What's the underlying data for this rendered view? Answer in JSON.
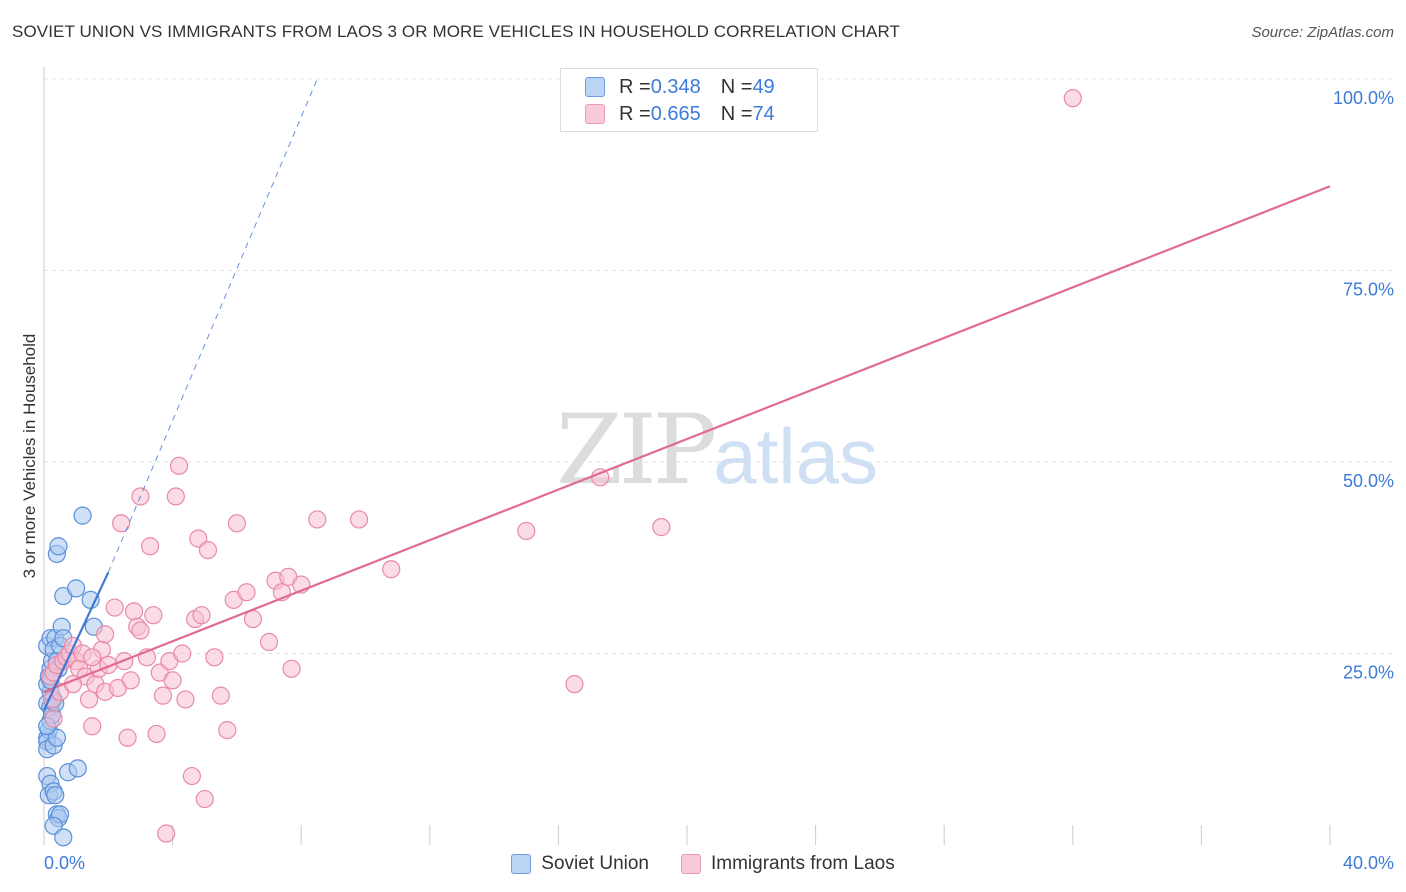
{
  "header": {
    "title": "SOVIET UNION VS IMMIGRANTS FROM LAOS 3 OR MORE VEHICLES IN HOUSEHOLD CORRELATION CHART",
    "source": "Source: ZipAtlas.com"
  },
  "watermark": {
    "zip": "ZIP",
    "atlas": "atlas"
  },
  "legend_top": {
    "rows": [
      {
        "r_label": "R = ",
        "r_value": "0.348",
        "n_label": "N = ",
        "n_value": "49"
      },
      {
        "r_label": "R = ",
        "r_value": "0.665",
        "n_label": "N = ",
        "n_value": "74"
      }
    ]
  },
  "legend_bottom": {
    "items": [
      "Soviet Union",
      "Immigrants from Laos"
    ]
  },
  "colors": {
    "soviet_fill": "#a9c8f0",
    "soviet_stroke": "#5b8fd9",
    "soviet_line": "#3f78d4",
    "laos_fill": "#f7bfd0",
    "laos_stroke": "#e88aa8",
    "laos_line": "#e06a94",
    "axis_text": "#3d7bd9",
    "grid": "#e2e2e2"
  },
  "chart_data": {
    "type": "scatter",
    "title": "SOVIET UNION VS IMMIGRANTS FROM LAOS 3 OR MORE VEHICLES IN HOUSEHOLD CORRELATION CHART",
    "xlabel": "",
    "ylabel": "3 or more Vehicles in Household",
    "xlim": [
      0,
      40
    ],
    "ylim": [
      0,
      100
    ],
    "x_tick_labels": [
      "0.0%",
      "40.0%"
    ],
    "y_ticks": [
      25,
      50,
      75,
      100
    ],
    "y_tick_labels": [
      "25.0%",
      "50.0%",
      "75.0%",
      "100.0%"
    ],
    "grid": true,
    "legend_position": "top-center",
    "series": [
      {
        "name": "Soviet Union",
        "r": 0.348,
        "n": 49,
        "trend": {
          "x": [
            0,
            2.0
          ],
          "y": [
            17.6,
            35.6
          ]
        },
        "trend_extension": {
          "x": [
            2.0,
            8.5
          ],
          "y": [
            35.6,
            100
          ]
        },
        "points": [
          [
            0.1,
            14.0
          ],
          [
            0.15,
            15.0
          ],
          [
            0.1,
            13.5
          ],
          [
            0.2,
            16.2
          ],
          [
            0.25,
            17.0
          ],
          [
            0.1,
            18.5
          ],
          [
            0.3,
            19.0
          ],
          [
            0.2,
            20.0
          ],
          [
            0.1,
            21.0
          ],
          [
            0.15,
            22.0
          ],
          [
            0.2,
            23.0
          ],
          [
            0.25,
            24.0
          ],
          [
            0.3,
            22.5
          ],
          [
            0.1,
            26.0
          ],
          [
            0.2,
            27.0
          ],
          [
            0.35,
            27.0
          ],
          [
            0.3,
            25.5
          ],
          [
            0.4,
            24.0
          ],
          [
            0.5,
            26.0
          ],
          [
            0.55,
            28.5
          ],
          [
            0.6,
            27.0
          ],
          [
            0.45,
            23.0
          ],
          [
            0.1,
            12.5
          ],
          [
            0.3,
            13.0
          ],
          [
            0.4,
            14.0
          ],
          [
            0.1,
            9.0
          ],
          [
            0.2,
            8.0
          ],
          [
            0.15,
            6.5
          ],
          [
            0.3,
            7.0
          ],
          [
            0.35,
            6.5
          ],
          [
            0.4,
            4.0
          ],
          [
            0.45,
            3.5
          ],
          [
            0.5,
            4.0
          ],
          [
            0.3,
            2.5
          ],
          [
            0.6,
            1.0
          ],
          [
            0.75,
            9.5
          ],
          [
            1.05,
            10.0
          ],
          [
            0.4,
            38.0
          ],
          [
            0.45,
            39.0
          ],
          [
            0.6,
            32.5
          ],
          [
            1.0,
            33.5
          ],
          [
            1.2,
            43.0
          ],
          [
            1.45,
            32.0
          ],
          [
            1.55,
            28.5
          ],
          [
            0.2,
            18.0
          ],
          [
            0.25,
            17.0
          ],
          [
            0.35,
            18.5
          ],
          [
            0.1,
            15.5
          ],
          [
            0.2,
            21.5
          ]
        ]
      },
      {
        "name": "Immigrants from Laos",
        "r": 0.665,
        "n": 74,
        "trend": {
          "x": [
            0,
            40
          ],
          "y": [
            20.0,
            86.0
          ]
        },
        "points": [
          [
            0.2,
            22.0
          ],
          [
            0.25,
            19.0
          ],
          [
            0.3,
            22.5
          ],
          [
            0.4,
            23.5
          ],
          [
            0.5,
            20.0
          ],
          [
            0.6,
            24.0
          ],
          [
            0.7,
            24.5
          ],
          [
            0.8,
            25.0
          ],
          [
            0.9,
            26.0
          ],
          [
            1.0,
            24.0
          ],
          [
            1.1,
            23.0
          ],
          [
            1.2,
            25.0
          ],
          [
            1.3,
            22.0
          ],
          [
            1.4,
            19.0
          ],
          [
            1.5,
            15.5
          ],
          [
            1.6,
            21.0
          ],
          [
            1.7,
            23.0
          ],
          [
            1.8,
            25.5
          ],
          [
            1.9,
            20.0
          ],
          [
            2.0,
            23.5
          ],
          [
            2.2,
            31.0
          ],
          [
            2.3,
            20.5
          ],
          [
            2.5,
            24.0
          ],
          [
            2.6,
            14.0
          ],
          [
            2.8,
            30.5
          ],
          [
            2.9,
            28.5
          ],
          [
            3.0,
            28.0
          ],
          [
            3.2,
            24.5
          ],
          [
            3.4,
            30.0
          ],
          [
            3.5,
            14.5
          ],
          [
            3.6,
            22.5
          ],
          [
            3.7,
            19.5
          ],
          [
            3.8,
            1.5
          ],
          [
            3.9,
            24.0
          ],
          [
            4.0,
            21.5
          ],
          [
            4.2,
            49.5
          ],
          [
            4.3,
            25.0
          ],
          [
            4.4,
            19.0
          ],
          [
            4.6,
            9.0
          ],
          [
            4.7,
            29.5
          ],
          [
            4.8,
            40.0
          ],
          [
            4.9,
            30.0
          ],
          [
            5.0,
            6.0
          ],
          [
            5.1,
            38.5
          ],
          [
            5.3,
            24.5
          ],
          [
            5.5,
            19.5
          ],
          [
            5.7,
            15.0
          ],
          [
            5.9,
            32.0
          ],
          [
            6.0,
            42.0
          ],
          [
            6.3,
            33.0
          ],
          [
            6.5,
            29.5
          ],
          [
            7.0,
            26.5
          ],
          [
            7.2,
            34.5
          ],
          [
            7.4,
            33.0
          ],
          [
            7.6,
            35.0
          ],
          [
            7.7,
            23.0
          ],
          [
            8.0,
            34.0
          ],
          [
            8.5,
            42.5
          ],
          [
            9.8,
            42.5
          ],
          [
            10.8,
            36.0
          ],
          [
            15.0,
            41.0
          ],
          [
            16.5,
            21.0
          ],
          [
            17.3,
            48.0
          ],
          [
            19.2,
            41.5
          ],
          [
            32.0,
            97.5
          ],
          [
            2.4,
            42.0
          ],
          [
            3.3,
            39.0
          ],
          [
            3.0,
            45.5
          ],
          [
            4.1,
            45.5
          ],
          [
            1.9,
            27.5
          ],
          [
            0.9,
            21.0
          ],
          [
            1.5,
            24.5
          ],
          [
            2.7,
            21.5
          ],
          [
            0.3,
            16.5
          ]
        ]
      }
    ]
  }
}
